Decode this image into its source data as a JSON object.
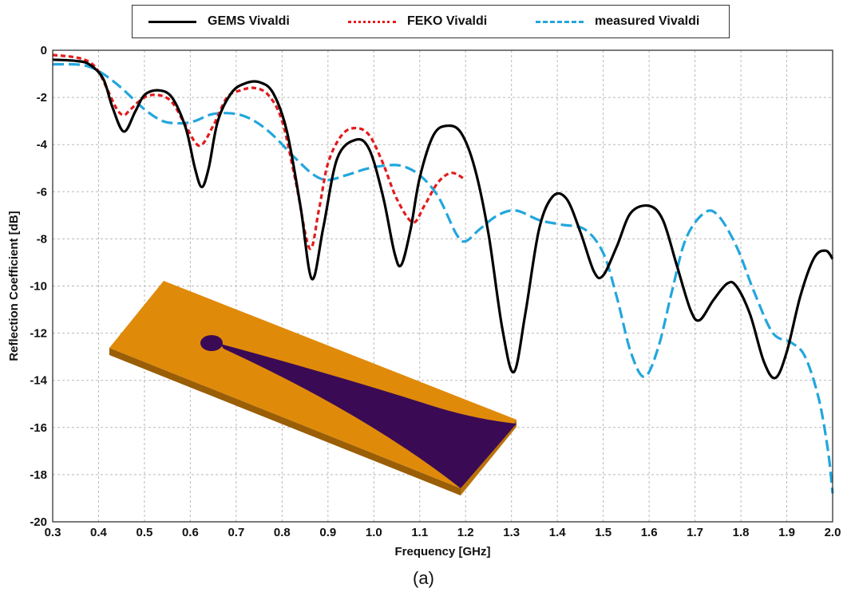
{
  "legend": {
    "gems": "GEMS Vivaldi",
    "feko": "FEKO Vivaldi",
    "measured": "measured Vivaldi"
  },
  "caption": "(a)",
  "colors": {
    "gems": "#000000",
    "feko": "#e31a1c",
    "measured": "#22a6dd",
    "antenna_board": "#e08a0a",
    "antenna_board_edge": "#9a5e06",
    "antenna_slot": "#3a0a55"
  },
  "chart_data": {
    "type": "line",
    "xlabel": "Frequency [GHz]",
    "ylabel": "Reflection Coefficient [dB]",
    "xlim": [
      0.3,
      2.0
    ],
    "ylim": [
      -20,
      0
    ],
    "xticks": [
      "0.3",
      "0.4",
      "0.5",
      "0.6",
      "0.7",
      "0.8",
      "0.9",
      "1.0",
      "1.1",
      "1.2",
      "1.3",
      "1.4",
      "1.5",
      "1.6",
      "1.7",
      "1.8",
      "1.9",
      "2.0"
    ],
    "yticks": [
      "0",
      "-2",
      "-4",
      "-6",
      "-8",
      "-10",
      "-12",
      "-14",
      "-16",
      "-18",
      "-20"
    ],
    "grid": true,
    "legend_position": "top",
    "series": [
      {
        "name": "GEMS Vivaldi",
        "style": "solid",
        "points": [
          [
            0.3,
            -0.4
          ],
          [
            0.35,
            -0.45
          ],
          [
            0.38,
            -0.6
          ],
          [
            0.41,
            -1.2
          ],
          [
            0.43,
            -2.4
          ],
          [
            0.455,
            -3.45
          ],
          [
            0.48,
            -2.6
          ],
          [
            0.5,
            -1.9
          ],
          [
            0.53,
            -1.7
          ],
          [
            0.56,
            -2.0
          ],
          [
            0.59,
            -3.3
          ],
          [
            0.61,
            -5.0
          ],
          [
            0.625,
            -5.8
          ],
          [
            0.64,
            -5.0
          ],
          [
            0.66,
            -3.0
          ],
          [
            0.69,
            -1.8
          ],
          [
            0.72,
            -1.4
          ],
          [
            0.75,
            -1.35
          ],
          [
            0.78,
            -1.8
          ],
          [
            0.81,
            -3.4
          ],
          [
            0.84,
            -6.6
          ],
          [
            0.865,
            -9.7
          ],
          [
            0.89,
            -7.5
          ],
          [
            0.92,
            -4.6
          ],
          [
            0.96,
            -3.8
          ],
          [
            0.99,
            -4.2
          ],
          [
            1.02,
            -6.2
          ],
          [
            1.045,
            -8.6
          ],
          [
            1.06,
            -9.1
          ],
          [
            1.08,
            -7.6
          ],
          [
            1.1,
            -5.4
          ],
          [
            1.13,
            -3.6
          ],
          [
            1.16,
            -3.2
          ],
          [
            1.19,
            -3.5
          ],
          [
            1.22,
            -5.0
          ],
          [
            1.25,
            -7.8
          ],
          [
            1.28,
            -11.8
          ],
          [
            1.305,
            -13.65
          ],
          [
            1.33,
            -11.2
          ],
          [
            1.36,
            -7.6
          ],
          [
            1.39,
            -6.2
          ],
          [
            1.42,
            -6.3
          ],
          [
            1.45,
            -7.7
          ],
          [
            1.48,
            -9.4
          ],
          [
            1.5,
            -9.55
          ],
          [
            1.53,
            -8.3
          ],
          [
            1.56,
            -6.9
          ],
          [
            1.6,
            -6.6
          ],
          [
            1.63,
            -7.2
          ],
          [
            1.66,
            -9.1
          ],
          [
            1.69,
            -11.0
          ],
          [
            1.71,
            -11.45
          ],
          [
            1.74,
            -10.6
          ],
          [
            1.77,
            -9.9
          ],
          [
            1.79,
            -10.0
          ],
          [
            1.82,
            -11.2
          ],
          [
            1.85,
            -13.2
          ],
          [
            1.875,
            -13.9
          ],
          [
            1.9,
            -12.8
          ],
          [
            1.93,
            -10.4
          ],
          [
            1.96,
            -8.8
          ],
          [
            1.985,
            -8.5
          ],
          [
            2.0,
            -8.85
          ]
        ]
      },
      {
        "name": "FEKO Vivaldi",
        "style": "dotted",
        "points": [
          [
            0.3,
            -0.2
          ],
          [
            0.35,
            -0.3
          ],
          [
            0.38,
            -0.5
          ],
          [
            0.4,
            -0.9
          ],
          [
            0.42,
            -1.7
          ],
          [
            0.44,
            -2.5
          ],
          [
            0.455,
            -2.75
          ],
          [
            0.47,
            -2.5
          ],
          [
            0.5,
            -2.0
          ],
          [
            0.53,
            -1.9
          ],
          [
            0.56,
            -2.2
          ],
          [
            0.59,
            -3.2
          ],
          [
            0.62,
            -4.05
          ],
          [
            0.65,
            -3.2
          ],
          [
            0.68,
            -2.0
          ],
          [
            0.71,
            -1.7
          ],
          [
            0.74,
            -1.6
          ],
          [
            0.77,
            -1.9
          ],
          [
            0.8,
            -3.0
          ],
          [
            0.83,
            -5.6
          ],
          [
            0.86,
            -8.4
          ],
          [
            0.88,
            -6.8
          ],
          [
            0.9,
            -4.8
          ],
          [
            0.93,
            -3.6
          ],
          [
            0.96,
            -3.3
          ],
          [
            0.99,
            -3.6
          ],
          [
            1.02,
            -4.8
          ],
          [
            1.05,
            -6.3
          ],
          [
            1.085,
            -7.3
          ],
          [
            1.11,
            -6.6
          ],
          [
            1.14,
            -5.6
          ],
          [
            1.17,
            -5.2
          ],
          [
            1.2,
            -5.5
          ]
        ]
      },
      {
        "name": "measured Vivaldi",
        "style": "dashed",
        "points": [
          [
            0.3,
            -0.6
          ],
          [
            0.35,
            -0.6
          ],
          [
            0.38,
            -0.7
          ],
          [
            0.41,
            -1.0
          ],
          [
            0.45,
            -1.6
          ],
          [
            0.5,
            -2.5
          ],
          [
            0.54,
            -3.0
          ],
          [
            0.58,
            -3.1
          ],
          [
            0.61,
            -3.0
          ],
          [
            0.65,
            -2.7
          ],
          [
            0.7,
            -2.7
          ],
          [
            0.74,
            -3.0
          ],
          [
            0.78,
            -3.6
          ],
          [
            0.83,
            -4.6
          ],
          [
            0.87,
            -5.3
          ],
          [
            0.9,
            -5.5
          ],
          [
            0.94,
            -5.3
          ],
          [
            0.98,
            -5.05
          ],
          [
            1.02,
            -4.9
          ],
          [
            1.06,
            -4.9
          ],
          [
            1.1,
            -5.3
          ],
          [
            1.14,
            -6.2
          ],
          [
            1.18,
            -7.8
          ],
          [
            1.2,
            -8.1
          ],
          [
            1.23,
            -7.6
          ],
          [
            1.27,
            -7.0
          ],
          [
            1.31,
            -6.8
          ],
          [
            1.36,
            -7.2
          ],
          [
            1.41,
            -7.4
          ],
          [
            1.46,
            -7.6
          ],
          [
            1.5,
            -8.6
          ],
          [
            1.53,
            -10.5
          ],
          [
            1.56,
            -12.8
          ],
          [
            1.59,
            -13.85
          ],
          [
            1.62,
            -12.6
          ],
          [
            1.65,
            -10.2
          ],
          [
            1.68,
            -8.0
          ],
          [
            1.72,
            -6.9
          ],
          [
            1.75,
            -7.0
          ],
          [
            1.79,
            -8.3
          ],
          [
            1.83,
            -10.3
          ],
          [
            1.87,
            -12.0
          ],
          [
            1.91,
            -12.4
          ],
          [
            1.94,
            -13.0
          ],
          [
            1.97,
            -14.8
          ],
          [
            1.99,
            -17.0
          ],
          [
            2.0,
            -18.8
          ]
        ]
      }
    ]
  }
}
